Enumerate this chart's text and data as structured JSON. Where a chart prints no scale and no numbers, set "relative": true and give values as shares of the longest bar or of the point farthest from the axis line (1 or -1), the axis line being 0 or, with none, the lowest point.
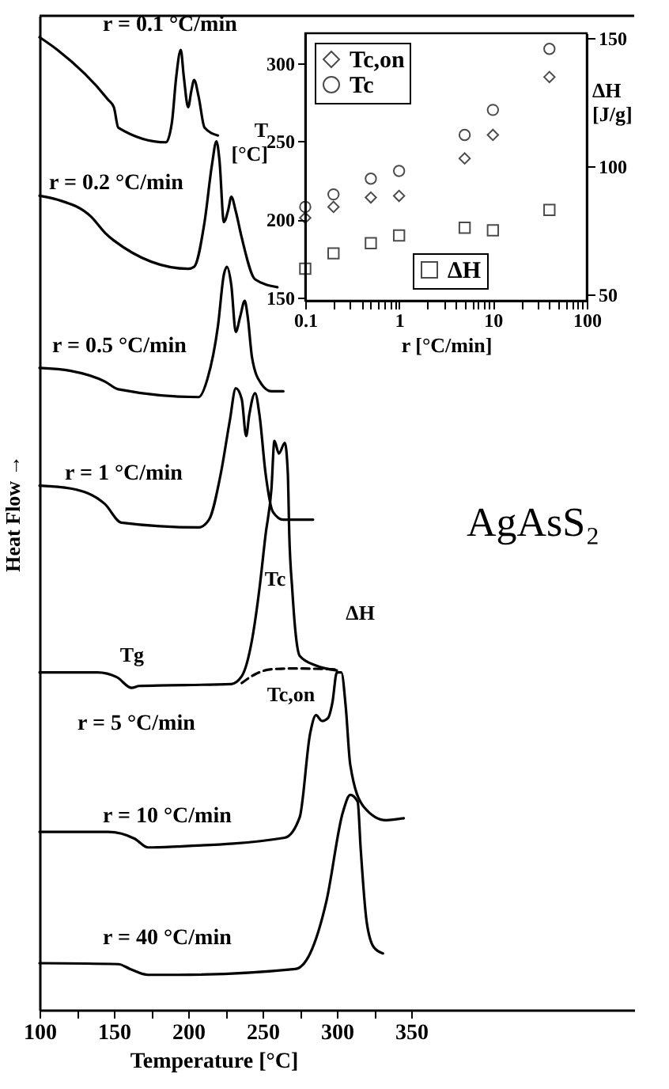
{
  "chart_data": [
    {
      "type": "line",
      "relative": true,
      "xlabel": "Temperature [°C]",
      "ylabel": "Heat Flow →",
      "xlim": [
        100,
        500
      ],
      "xticks": [
        100,
        {
          "value": 125,
          "label": null
        },
        150,
        {
          "value": 175,
          "label": null
        },
        200,
        {
          "value": 225,
          "label": null
        },
        250,
        {
          "value": 275,
          "label": null
        },
        300,
        {
          "value": 325,
          "label": null
        },
        350
      ],
      "tick_labels": "x",
      "legend": false,
      "line_style": "solid",
      "series": [
        {
          "name": "r = 0.1 °C/min",
          "color": "#000000",
          "x": [
            100,
            112,
            146,
            150,
            153,
            185,
            189,
            192,
            195,
            197,
            200,
            202,
            204,
            207,
            211,
            220
          ],
          "values": [
            1.0,
            0.987,
            0.936,
            0.928,
            0.907,
            0.892,
            0.912,
            0.96,
            0.987,
            0.96,
            0.928,
            0.944,
            0.956,
            0.939,
            0.907,
            0.899
          ]
        },
        {
          "name": "r = 0.2 °C/min",
          "color": "#000000",
          "x": [
            100,
            112,
            135,
            144,
            150,
            200,
            204,
            211,
            216,
            219,
            221,
            224,
            227,
            229,
            232,
            236,
            245,
            260
          ],
          "values": [
            0.837,
            0.833,
            0.815,
            0.799,
            0.791,
            0.762,
            0.764,
            0.81,
            0.869,
            0.893,
            0.874,
            0.81,
            0.823,
            0.836,
            0.821,
            0.794,
            0.751,
            0.743
          ]
        },
        {
          "name": "r = 0.5 °C/min",
          "color": "#000000",
          "x": [
            100,
            121,
            144,
            153,
            207,
            213,
            220,
            224,
            226,
            229,
            232,
            235,
            238,
            240,
            243,
            249,
            256,
            264
          ],
          "values": [
            0.66,
            0.657,
            0.646,
            0.638,
            0.63,
            0.649,
            0.703,
            0.756,
            0.764,
            0.745,
            0.697,
            0.713,
            0.729,
            0.713,
            0.67,
            0.644,
            0.636,
            0.636
          ]
        },
        {
          "name": "r = 1 °C/min",
          "color": "#000000",
          "x": [
            100,
            121,
            144,
            155,
            207,
            214,
            222,
            228,
            232,
            236,
            239,
            241,
            245,
            248,
            252,
            257,
            264,
            284
          ],
          "values": [
            0.539,
            0.536,
            0.52,
            0.501,
            0.496,
            0.504,
            0.552,
            0.606,
            0.639,
            0.628,
            0.59,
            0.611,
            0.634,
            0.611,
            0.552,
            0.512,
            0.504,
            0.504
          ]
        },
        {
          "name": "r = 5 °C/min",
          "color": "#000000",
          "x": [
            100,
            139,
            152,
            162,
            167,
            229,
            236,
            243,
            248,
            252,
            256,
            258,
            261,
            265,
            267,
            268,
            270,
            272,
            275,
            286,
            300
          ],
          "values": [
            0.347,
            0.347,
            0.342,
            0.331,
            0.333,
            0.335,
            0.343,
            0.381,
            0.434,
            0.488,
            0.536,
            0.585,
            0.572,
            0.583,
            0.552,
            0.488,
            0.432,
            0.391,
            0.364,
            0.354,
            0.349
          ]
        },
        {
          "color": "#000000",
          "line_style": "dashed",
          "x": [
            236,
            245,
            255,
            270,
            300
          ],
          "values": [
            0.336,
            0.345,
            0.35,
            0.351,
            0.35
          ]
        },
        {
          "name": "r = 10 °C/min",
          "color": "#000000",
          "x": [
            100,
            146,
            164,
            173,
            193,
            265,
            275,
            282,
            286,
            290,
            294,
            297,
            300,
            303,
            306,
            309,
            318,
            333,
            345
          ],
          "values": [
            0.183,
            0.183,
            0.176,
            0.167,
            0.168,
            0.177,
            0.198,
            0.284,
            0.303,
            0.297,
            0.3,
            0.316,
            0.347,
            0.347,
            0.311,
            0.252,
            0.209,
            0.195,
            0.197
          ]
        },
        {
          "name": "r = 40 °C/min",
          "color": "#000000",
          "x": [
            100,
            153,
            161,
            173,
            193,
            272,
            282,
            293,
            304,
            309,
            314,
            316,
            320,
            325,
            331
          ],
          "values": [
            0.048,
            0.047,
            0.042,
            0.036,
            0.036,
            0.042,
            0.058,
            0.112,
            0.203,
            0.221,
            0.214,
            0.166,
            0.091,
            0.064,
            0.058
          ]
        }
      ],
      "annotations": [
        "Tc",
        {
          "text": "ΔH",
          "x": 272,
          "y": 0.391
        },
        {
          "text": "Tg",
          "x": 152,
          "y": 0.342
        },
        {
          "text": "Tc,on",
          "x": 236,
          "y": 0.343
        },
        "AgAsS₂"
      ]
    },
    {
      "type": "scatter",
      "log": "x",
      "xlabel": "r [°C/min]",
      "ylabel": "T [°C]",
      "y2label": "ΔH [J/g]",
      "xlim": [
        0.1,
        100
      ],
      "ylim": [
        148,
        319
      ],
      "y2lim": [
        47.5,
        152
      ],
      "xticks": [
        0.1,
        {
          "value": 0.2,
          "label": null
        },
        {
          "value": 0.3,
          "label": null
        },
        {
          "value": 0.4,
          "label": null
        },
        {
          "value": 0.5,
          "label": null
        },
        {
          "value": 0.6,
          "label": null
        },
        {
          "value": 0.7,
          "label": null
        },
        {
          "value": 0.8,
          "label": null
        },
        {
          "value": 0.9,
          "label": null
        },
        1,
        {
          "value": 2,
          "label": null
        },
        {
          "value": 3,
          "label": null
        },
        {
          "value": 4,
          "label": null
        },
        {
          "value": 5,
          "label": null
        },
        {
          "value": 6,
          "label": null
        },
        {
          "value": 7,
          "label": null
        },
        {
          "value": 8,
          "label": null
        },
        {
          "value": 9,
          "label": null
        },
        10,
        {
          "value": 20,
          "label": null
        },
        {
          "value": 30,
          "label": null
        },
        {
          "value": 40,
          "label": null
        },
        {
          "value": 50,
          "label": null
        },
        {
          "value": 60,
          "label": null
        },
        {
          "value": 70,
          "label": null
        },
        {
          "value": 80,
          "label": null
        },
        {
          "value": 90,
          "label": null
        },
        100
      ],
      "yticks": [
        150,
        200,
        250,
        300
      ],
      "y2ticks": [
        50,
        100,
        150
      ],
      "legend": "top left",
      "x": [
        0.1,
        0.2,
        0.5,
        1,
        5,
        10,
        40
      ],
      "series": [
        {
          "name": "Tc,on",
          "color": "#000000",
          "marker": "diamond",
          "values": [
            201,
            208,
            214,
            215,
            239,
            254,
            291
          ]
        },
        {
          "name": "Tc",
          "color": "#000000",
          "marker": "circle",
          "values": [
            208,
            216,
            226,
            231,
            254,
            270,
            309
          ]
        },
        {
          "name": "ΔH",
          "color": "#000000",
          "marker": "square",
          "axis": "y2",
          "values": [
            60,
            66,
            70,
            73,
            76,
            75,
            83
          ]
        }
      ]
    }
  ]
}
